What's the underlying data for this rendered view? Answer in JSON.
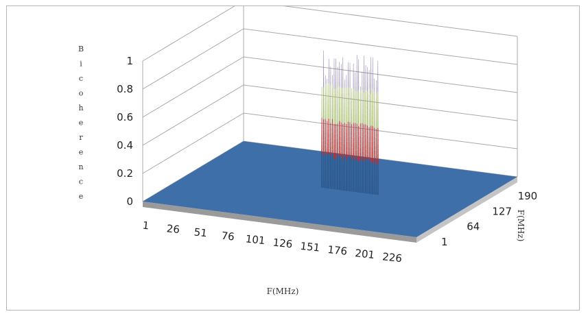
{
  "chart_data": {
    "type": "surface",
    "title": "",
    "zlabel": "Bicoherence",
    "xlabel": "F(MHz)",
    "ylabel": "F(MHz)",
    "zlim": [
      0,
      1
    ],
    "z_ticks": [
      "0",
      "0.2",
      "0.4",
      "0.6",
      "0.8",
      "1"
    ],
    "x_ticks": [
      "1",
      "26",
      "51",
      "76",
      "101",
      "126",
      "151",
      "176",
      "201",
      "226"
    ],
    "y_ticks": [
      "1",
      "64",
      "127",
      "190"
    ],
    "x_range": [
      1,
      251
    ],
    "y_range": [
      1,
      250
    ],
    "grid": true,
    "colors": {
      "floor": "#3f6fa8",
      "floor_side": "#9a9a9a",
      "band_0": "#2d5a8f",
      "band_1": "#b02d2d",
      "band_2": "#8fb04a",
      "band_3": "#7a64a8"
    },
    "peak_region": {
      "x_from": 118,
      "x_to": 170,
      "y_value": 127,
      "z_max": 1
    }
  }
}
